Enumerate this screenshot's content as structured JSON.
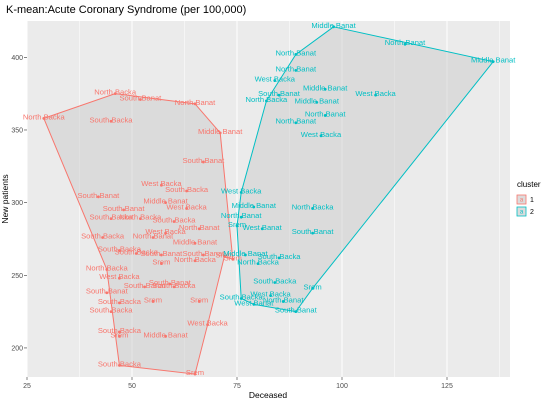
{
  "chart_data": {
    "type": "scatter",
    "title": "K-mean:Acute Coronary Syndrome (per 100,000)",
    "xlabel": "Deceased",
    "ylabel": "New patients",
    "xlim": [
      25,
      140
    ],
    "ylim": [
      180,
      425
    ],
    "xticks": [
      25,
      50,
      75,
      100,
      125
    ],
    "yticks": [
      200,
      250,
      300,
      350,
      400
    ],
    "grid": true,
    "legend": {
      "title": "cluster",
      "placement": "right",
      "items": [
        "1",
        "2"
      ]
    },
    "colors": {
      "1": "#F8766D",
      "2": "#00BFC4",
      "panel": "#EBEBEB",
      "grid": "#ffffff",
      "hull_fill": "#c8c8c8"
    },
    "series": [
      {
        "name": "1",
        "points": [
          {
            "x": 29,
            "y": 358,
            "label": "North Backa"
          },
          {
            "x": 46,
            "y": 375,
            "label": "North Backa"
          },
          {
            "x": 52,
            "y": 371,
            "label": "South Banat"
          },
          {
            "x": 45,
            "y": 356,
            "label": "South Backa"
          },
          {
            "x": 65,
            "y": 368,
            "label": "North Banat"
          },
          {
            "x": 71,
            "y": 348,
            "label": "Middle Banat"
          },
          {
            "x": 67,
            "y": 328,
            "label": "South Banat"
          },
          {
            "x": 57,
            "y": 312,
            "label": "West Backa"
          },
          {
            "x": 63,
            "y": 308,
            "label": "South Backa"
          },
          {
            "x": 42,
            "y": 304,
            "label": "South Banat"
          },
          {
            "x": 58,
            "y": 300,
            "label": "Middle Banat"
          },
          {
            "x": 48,
            "y": 295,
            "label": "South Banat"
          },
          {
            "x": 63,
            "y": 296,
            "label": "West Backa"
          },
          {
            "x": 45,
            "y": 289,
            "label": "South Backa"
          },
          {
            "x": 52,
            "y": 289,
            "label": "North Backa"
          },
          {
            "x": 60,
            "y": 287,
            "label": "South Backa"
          },
          {
            "x": 66,
            "y": 282,
            "label": "North Banat"
          },
          {
            "x": 58,
            "y": 279,
            "label": "West Backa"
          },
          {
            "x": 43,
            "y": 276,
            "label": "South Backa"
          },
          {
            "x": 55,
            "y": 276,
            "label": "North Banat"
          },
          {
            "x": 65,
            "y": 272,
            "label": "Middle Banat"
          },
          {
            "x": 47,
            "y": 267,
            "label": "South Backa"
          },
          {
            "x": 51,
            "y": 265,
            "label": "South Backa"
          },
          {
            "x": 57,
            "y": 264,
            "label": "South Banat"
          },
          {
            "x": 67,
            "y": 264,
            "label": "South Banat"
          },
          {
            "x": 72,
            "y": 263,
            "label": "Srem"
          },
          {
            "x": 74,
            "y": 261,
            "label": "Srem"
          },
          {
            "x": 65,
            "y": 260,
            "label": "North Backa"
          },
          {
            "x": 57,
            "y": 258,
            "label": "Srem"
          },
          {
            "x": 44,
            "y": 254,
            "label": "North Backa"
          },
          {
            "x": 47,
            "y": 248,
            "label": "West Backa"
          },
          {
            "x": 53,
            "y": 242,
            "label": "South Banat"
          },
          {
            "x": 59,
            "y": 244,
            "label": "South Banat"
          },
          {
            "x": 60,
            "y": 242,
            "label": "South Backa"
          },
          {
            "x": 44,
            "y": 238,
            "label": "South Banat"
          },
          {
            "x": 47,
            "y": 231,
            "label": "South Backa"
          },
          {
            "x": 55,
            "y": 232,
            "label": "Srem"
          },
          {
            "x": 66,
            "y": 232,
            "label": "Srem"
          },
          {
            "x": 45,
            "y": 225,
            "label": "South Backa"
          },
          {
            "x": 68,
            "y": 216,
            "label": "West Backa"
          },
          {
            "x": 47,
            "y": 211,
            "label": "South Backa"
          },
          {
            "x": 47,
            "y": 208,
            "label": "Srem"
          },
          {
            "x": 58,
            "y": 208,
            "label": "Middle Banat"
          },
          {
            "x": 47,
            "y": 188,
            "label": "South Backa"
          },
          {
            "x": 65,
            "y": 182,
            "label": "Srem"
          }
        ]
      },
      {
        "name": "2",
        "points": [
          {
            "x": 98,
            "y": 421,
            "label": "Middle Banat"
          },
          {
            "x": 115,
            "y": 409,
            "label": "North Banat"
          },
          {
            "x": 136,
            "y": 397,
            "label": "Middle Banat"
          },
          {
            "x": 89,
            "y": 402,
            "label": "North Banat"
          },
          {
            "x": 89,
            "y": 391,
            "label": "North Banat"
          },
          {
            "x": 84,
            "y": 384,
            "label": "West Backa"
          },
          {
            "x": 96,
            "y": 378,
            "label": "Middle Banat"
          },
          {
            "x": 85,
            "y": 374,
            "label": "South Banat"
          },
          {
            "x": 108,
            "y": 374,
            "label": "West Backa"
          },
          {
            "x": 82,
            "y": 370,
            "label": "North Backa"
          },
          {
            "x": 94,
            "y": 369,
            "label": "Middle Banat"
          },
          {
            "x": 96,
            "y": 360,
            "label": "North Banat"
          },
          {
            "x": 89,
            "y": 355,
            "label": "North Banat"
          },
          {
            "x": 95,
            "y": 346,
            "label": "West Backa"
          },
          {
            "x": 76,
            "y": 307,
            "label": "West Backa"
          },
          {
            "x": 79,
            "y": 297,
            "label": "Middle Banat"
          },
          {
            "x": 93,
            "y": 296,
            "label": "North Backa"
          },
          {
            "x": 76,
            "y": 290,
            "label": "North Banat"
          },
          {
            "x": 75,
            "y": 284,
            "label": "Srem"
          },
          {
            "x": 81,
            "y": 282,
            "label": "West Banat"
          },
          {
            "x": 93,
            "y": 279,
            "label": "South Banat"
          },
          {
            "x": 77,
            "y": 264,
            "label": "Middle Banat"
          },
          {
            "x": 85,
            "y": 262,
            "label": "South Backa"
          },
          {
            "x": 80,
            "y": 258,
            "label": "North Backa"
          },
          {
            "x": 84,
            "y": 245,
            "label": "South Backa"
          },
          {
            "x": 93,
            "y": 241,
            "label": "Srem"
          },
          {
            "x": 83,
            "y": 236,
            "label": "West Backa"
          },
          {
            "x": 76,
            "y": 234,
            "label": "South Backa"
          },
          {
            "x": 86,
            "y": 232,
            "label": "North Banat"
          },
          {
            "x": 79,
            "y": 230,
            "label": "West Banat"
          },
          {
            "x": 89,
            "y": 225,
            "label": "South Banat"
          }
        ]
      }
    ],
    "hulls": {
      "1": [
        [
          29,
          358
        ],
        [
          46,
          375
        ],
        [
          65,
          368
        ],
        [
          71,
          348
        ],
        [
          74,
          261
        ],
        [
          72,
          263
        ],
        [
          68,
          216
        ],
        [
          65,
          182
        ],
        [
          47,
          188
        ],
        [
          44,
          254
        ],
        [
          29,
          358
        ]
      ],
      "2": [
        [
          98,
          421
        ],
        [
          136,
          397
        ],
        [
          93,
          241
        ],
        [
          89,
          225
        ],
        [
          79,
          230
        ],
        [
          76,
          234
        ],
        [
          75,
          284
        ],
        [
          76,
          307
        ],
        [
          82,
          370
        ],
        [
          89,
          402
        ],
        [
          98,
          421
        ]
      ]
    }
  }
}
